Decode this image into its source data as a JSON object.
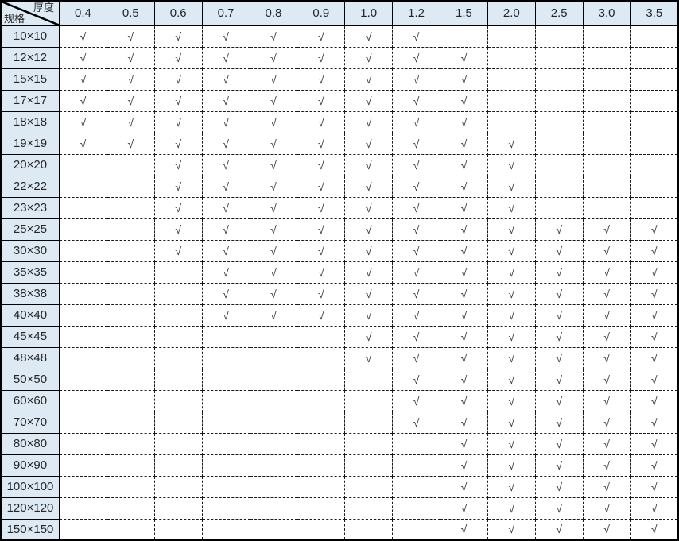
{
  "colors": {
    "header_bg": "#dde9f3",
    "border": "#000000",
    "text": "#262626",
    "check": "#333740"
  },
  "table": {
    "corner": {
      "top_label": "厚度",
      "bottom_label": "规格"
    },
    "check_symbol": "√",
    "thickness_headers": [
      "0.4",
      "0.5",
      "0.6",
      "0.7",
      "0.8",
      "0.9",
      "1.0",
      "1.2",
      "1.5",
      "2.0",
      "2.5",
      "3.0",
      "3.5"
    ],
    "rows": [
      {
        "spec": "10×10",
        "checks": [
          1,
          1,
          1,
          1,
          1,
          1,
          1,
          1,
          0,
          0,
          0,
          0,
          0
        ]
      },
      {
        "spec": "12×12",
        "checks": [
          1,
          1,
          1,
          1,
          1,
          1,
          1,
          1,
          1,
          0,
          0,
          0,
          0
        ]
      },
      {
        "spec": "15×15",
        "checks": [
          1,
          1,
          1,
          1,
          1,
          1,
          1,
          1,
          1,
          0,
          0,
          0,
          0
        ]
      },
      {
        "spec": "17×17",
        "checks": [
          1,
          1,
          1,
          1,
          1,
          1,
          1,
          1,
          1,
          0,
          0,
          0,
          0
        ]
      },
      {
        "spec": "18×18",
        "checks": [
          1,
          1,
          1,
          1,
          1,
          1,
          1,
          1,
          1,
          0,
          0,
          0,
          0
        ]
      },
      {
        "spec": "19×19",
        "checks": [
          1,
          1,
          1,
          1,
          1,
          1,
          1,
          1,
          1,
          1,
          0,
          0,
          0
        ]
      },
      {
        "spec": "20×20",
        "checks": [
          0,
          0,
          1,
          1,
          1,
          1,
          1,
          1,
          1,
          1,
          0,
          0,
          0
        ]
      },
      {
        "spec": "22×22",
        "checks": [
          0,
          0,
          1,
          1,
          1,
          1,
          1,
          1,
          1,
          1,
          0,
          0,
          0
        ]
      },
      {
        "spec": "23×23",
        "checks": [
          0,
          0,
          1,
          1,
          1,
          1,
          1,
          1,
          1,
          1,
          0,
          0,
          0
        ]
      },
      {
        "spec": "25×25",
        "checks": [
          0,
          0,
          1,
          1,
          1,
          1,
          1,
          1,
          1,
          1,
          1,
          1,
          1
        ]
      },
      {
        "spec": "30×30",
        "checks": [
          0,
          0,
          1,
          1,
          1,
          1,
          1,
          1,
          1,
          1,
          1,
          1,
          1
        ]
      },
      {
        "spec": "35×35",
        "checks": [
          0,
          0,
          0,
          1,
          1,
          1,
          1,
          1,
          1,
          1,
          1,
          1,
          1
        ]
      },
      {
        "spec": "38×38",
        "checks": [
          0,
          0,
          0,
          1,
          1,
          1,
          1,
          1,
          1,
          1,
          1,
          1,
          1
        ]
      },
      {
        "spec": "40×40",
        "checks": [
          0,
          0,
          0,
          1,
          1,
          1,
          1,
          1,
          1,
          1,
          1,
          1,
          1
        ]
      },
      {
        "spec": "45×45",
        "checks": [
          0,
          0,
          0,
          0,
          0,
          0,
          1,
          1,
          1,
          1,
          1,
          1,
          1
        ]
      },
      {
        "spec": "48×48",
        "checks": [
          0,
          0,
          0,
          0,
          0,
          0,
          1,
          1,
          1,
          1,
          1,
          1,
          1
        ]
      },
      {
        "spec": "50×50",
        "checks": [
          0,
          0,
          0,
          0,
          0,
          0,
          0,
          1,
          1,
          1,
          1,
          1,
          1
        ]
      },
      {
        "spec": "60×60",
        "checks": [
          0,
          0,
          0,
          0,
          0,
          0,
          0,
          1,
          1,
          1,
          1,
          1,
          1
        ]
      },
      {
        "spec": "70×70",
        "checks": [
          0,
          0,
          0,
          0,
          0,
          0,
          0,
          1,
          1,
          1,
          1,
          1,
          1
        ]
      },
      {
        "spec": "80×80",
        "checks": [
          0,
          0,
          0,
          0,
          0,
          0,
          0,
          0,
          1,
          1,
          1,
          1,
          1
        ]
      },
      {
        "spec": "90×90",
        "checks": [
          0,
          0,
          0,
          0,
          0,
          0,
          0,
          0,
          1,
          1,
          1,
          1,
          1
        ]
      },
      {
        "spec": "100×100",
        "checks": [
          0,
          0,
          0,
          0,
          0,
          0,
          0,
          0,
          1,
          1,
          1,
          1,
          1
        ]
      },
      {
        "spec": "120×120",
        "checks": [
          0,
          0,
          0,
          0,
          0,
          0,
          0,
          0,
          1,
          1,
          1,
          1,
          1
        ]
      },
      {
        "spec": "150×150",
        "checks": [
          0,
          0,
          0,
          0,
          0,
          0,
          0,
          0,
          1,
          1,
          1,
          1,
          1
        ]
      }
    ]
  }
}
